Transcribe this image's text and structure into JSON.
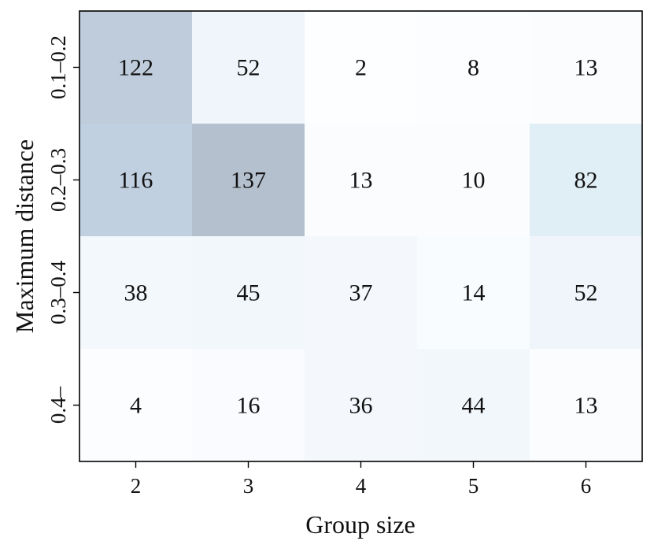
{
  "chart_data": {
    "type": "heatmap",
    "title": "",
    "xlabel": "Group size",
    "ylabel": "Maximum distance",
    "x_categories": [
      "2",
      "3",
      "4",
      "5",
      "6"
    ],
    "y_categories": [
      "0.1–0.2",
      "0.2–0.3",
      "0.3–0.4",
      "0.4–"
    ],
    "values": [
      [
        122,
        52,
        2,
        8,
        13
      ],
      [
        116,
        137,
        13,
        10,
        82
      ],
      [
        38,
        45,
        37,
        14,
        52
      ],
      [
        4,
        16,
        36,
        44,
        13
      ]
    ],
    "colorscale": [
      "#f7fbff",
      "#08306b"
    ],
    "grid": false,
    "legend": "none"
  }
}
